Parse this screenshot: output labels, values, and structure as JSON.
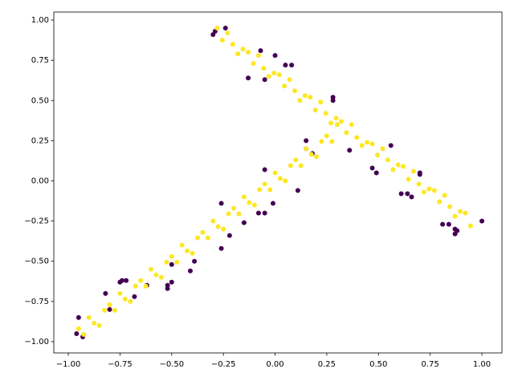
{
  "chart_data": {
    "type": "scatter",
    "xlim": [
      -1.07,
      1.097
    ],
    "ylim": [
      -1.07,
      1.05
    ],
    "xticks": [
      {
        "value": -1,
        "label": "−1.00"
      },
      {
        "value": -0.75,
        "label": "−0.75"
      },
      {
        "value": -0.5,
        "label": "−0.50"
      },
      {
        "value": -0.25,
        "label": "−0.25"
      },
      {
        "value": 0,
        "label": "0.00"
      },
      {
        "value": 0.25,
        "label": "0.25"
      },
      {
        "value": 0.5,
        "label": "0.50"
      },
      {
        "value": 0.75,
        "label": "0.75"
      },
      {
        "value": 1,
        "label": "1.00"
      }
    ],
    "yticks": [
      {
        "value": -1,
        "label": "−1.00"
      },
      {
        "value": -0.75,
        "label": "−0.75"
      },
      {
        "value": -0.5,
        "label": "−0.50"
      },
      {
        "value": -0.25,
        "label": "−0.25"
      },
      {
        "value": 0,
        "label": "0.00"
      },
      {
        "value": 0.25,
        "label": "0.25"
      },
      {
        "value": 0.5,
        "label": "0.50"
      },
      {
        "value": 0.75,
        "label": "0.75"
      },
      {
        "value": 1,
        "label": "1.00"
      }
    ],
    "grid": false,
    "series": [
      {
        "color": "#440154",
        "x": [
          -0.29,
          -0.3,
          -0.24,
          -0.07,
          -0.13,
          0.0,
          0.05,
          0.08,
          -0.05,
          0.28,
          0.28,
          0.36,
          0.56,
          0.47,
          0.49,
          0.61,
          0.64,
          0.66,
          0.7,
          0.7,
          0.81,
          0.84,
          0.87,
          0.88,
          0.87,
          1.0,
          0.15,
          0.15,
          0.18,
          0.11,
          -0.05,
          -0.05,
          -0.08,
          -0.01,
          -0.15,
          -0.22,
          -0.26,
          -0.26,
          -0.41,
          -0.5,
          -0.52,
          -0.52,
          -0.62,
          -0.75,
          -0.72,
          -0.74,
          -0.82,
          -0.68,
          -0.8,
          -0.95,
          -0.96,
          -0.93,
          -0.39,
          -0.5
        ],
        "values": [
          0.93,
          0.91,
          0.95,
          0.81,
          0.64,
          0.78,
          0.72,
          0.72,
          0.63,
          0.52,
          0.5,
          0.19,
          0.22,
          0.08,
          0.05,
          -0.08,
          -0.08,
          -0.1,
          0.05,
          0.04,
          -0.27,
          -0.27,
          -0.3,
          -0.31,
          -0.33,
          -0.25,
          0.25,
          0.2,
          0.17,
          -0.06,
          0.07,
          -0.2,
          -0.2,
          -0.14,
          -0.26,
          -0.34,
          -0.42,
          -0.14,
          -0.56,
          -0.63,
          -0.65,
          -0.67,
          -0.65,
          -0.63,
          -0.62,
          -0.62,
          -0.7,
          -0.72,
          -0.8,
          -0.85,
          -0.95,
          -0.97,
          -0.5,
          -0.52
        ]
      },
      {
        "color": "#fde725",
        "x": [
          -0.95,
          -0.925,
          -0.9,
          -0.875,
          -0.85,
          -0.825,
          -0.8,
          -0.775,
          -0.75,
          -0.725,
          -0.7,
          -0.675,
          -0.65,
          -0.625,
          -0.6,
          -0.575,
          -0.55,
          -0.525,
          -0.5,
          -0.475,
          -0.45,
          -0.425,
          -0.4,
          -0.375,
          -0.35,
          -0.325,
          -0.3,
          -0.275,
          -0.25,
          -0.225,
          -0.2,
          -0.175,
          -0.15,
          -0.125,
          -0.1,
          -0.075,
          -0.05,
          -0.025,
          0,
          0.025,
          0.05,
          0.075,
          0.1,
          0.125,
          0.15,
          0.175,
          0.2,
          0.225,
          0.25,
          0.275,
          0.3,
          -0.28,
          -0.255,
          -0.23,
          -0.205,
          -0.18,
          -0.155,
          -0.13,
          -0.105,
          -0.08,
          -0.055,
          -0.03,
          -0.005,
          0.02,
          0.045,
          0.07,
          0.095,
          0.12,
          0.145,
          0.17,
          0.195,
          0.22,
          0.245,
          0.27,
          0.295,
          0.32,
          0.345,
          0.37,
          0.395,
          0.42,
          0.445,
          0.47,
          0.495,
          0.52,
          0.545,
          0.57,
          0.595,
          0.62,
          0.645,
          0.67,
          0.695,
          0.72,
          0.745,
          0.77,
          0.795,
          0.82,
          0.845,
          0.87,
          0.895,
          0.92,
          0.945
        ],
        "values": [
          -0.92,
          -0.955,
          -0.85,
          -0.885,
          -0.9,
          -0.805,
          -0.77,
          -0.805,
          -0.7,
          -0.735,
          -0.75,
          -0.655,
          -0.62,
          -0.655,
          -0.55,
          -0.585,
          -0.6,
          -0.505,
          -0.47,
          -0.505,
          -0.4,
          -0.435,
          -0.45,
          -0.355,
          -0.32,
          -0.355,
          -0.25,
          -0.285,
          -0.3,
          -0.205,
          -0.17,
          -0.205,
          -0.1,
          -0.135,
          -0.15,
          -0.055,
          -0.02,
          -0.055,
          0.05,
          0.015,
          0.0,
          0.095,
          0.13,
          0.095,
          0.2,
          0.165,
          0.15,
          0.245,
          0.28,
          0.245,
          0.35,
          0.95,
          0.875,
          0.92,
          0.85,
          0.79,
          0.82,
          0.8,
          0.73,
          0.78,
          0.7,
          0.65,
          0.67,
          0.66,
          0.59,
          0.63,
          0.56,
          0.5,
          0.53,
          0.52,
          0.44,
          0.49,
          0.42,
          0.36,
          0.39,
          0.37,
          0.3,
          0.35,
          0.27,
          0.22,
          0.24,
          0.23,
          0.16,
          0.2,
          0.13,
          0.07,
          0.1,
          0.09,
          0.01,
          0.06,
          -0.02,
          -0.07,
          -0.05,
          -0.06,
          -0.13,
          -0.09,
          -0.16,
          -0.22,
          -0.19,
          -0.2,
          -0.28
        ]
      }
    ]
  }
}
